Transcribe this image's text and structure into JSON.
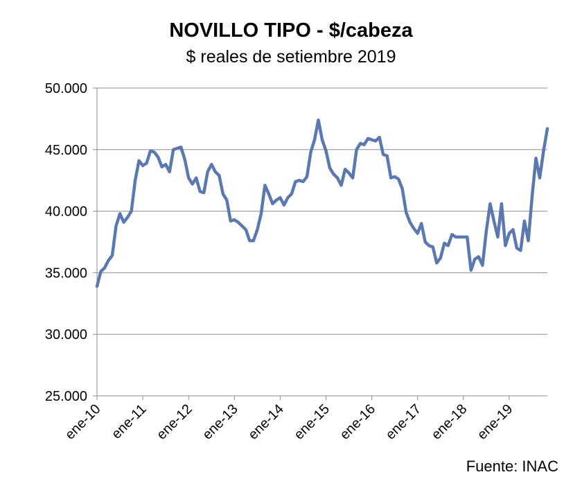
{
  "chart_data": {
    "type": "line",
    "title": "NOVILLO TIPO - $/cabeza",
    "subtitle": "$ reales de setiembre 2019",
    "source": "Fuente: INAC",
    "ylim": [
      25000,
      50000
    ],
    "yticks": [
      25000,
      30000,
      35000,
      40000,
      45000,
      50000
    ],
    "ytick_labels": [
      "25.000",
      "30.000",
      "35.000",
      "40.000",
      "45.000",
      "50.000"
    ],
    "xticks": [
      "ene-10",
      "ene-11",
      "ene-12",
      "ene-13",
      "ene-14",
      "ene-15",
      "ene-16",
      "ene-17",
      "ene-18",
      "ene-19"
    ],
    "x_start": "ene-10",
    "x_end": "sep-19",
    "grid": true,
    "series_color": "#5b78b0",
    "series": [
      {
        "values": [
          33900,
          35100,
          35400,
          36000,
          36400,
          38800,
          39800,
          39100,
          39500,
          40000,
          42500,
          44100,
          43700,
          43900,
          44900,
          44800,
          44400,
          43600,
          43800,
          43200,
          45000,
          45100,
          45200,
          44200,
          42700,
          42200,
          42700,
          41600,
          41500,
          43200,
          43800,
          43200,
          42900,
          41400,
          40900,
          39200,
          39300,
          39100,
          38800,
          38500,
          37600,
          37600,
          38500,
          39800,
          42100,
          41400,
          40600,
          40900,
          41100,
          40500,
          41100,
          41400,
          42400,
          42500,
          42400,
          42800,
          44800,
          45800,
          47400,
          45800,
          44900,
          43500,
          43000,
          42700,
          42100,
          43400,
          43100,
          42700,
          45000,
          45500,
          45400,
          45900,
          45800,
          45700,
          46000,
          44600,
          44500,
          42700,
          42800,
          42600,
          41800,
          39900,
          39100,
          38600,
          38200,
          39000,
          37500,
          37200,
          37100,
          35800,
          36200,
          37400,
          37200,
          38100,
          37900,
          37900,
          37900,
          37900,
          35200,
          36100,
          36300,
          35600,
          38400,
          40600,
          39200,
          37900,
          40600,
          37200,
          38200,
          38500,
          37000,
          36800,
          39200,
          37600,
          41200,
          44300,
          42700,
          44900,
          46700
        ]
      }
    ]
  }
}
